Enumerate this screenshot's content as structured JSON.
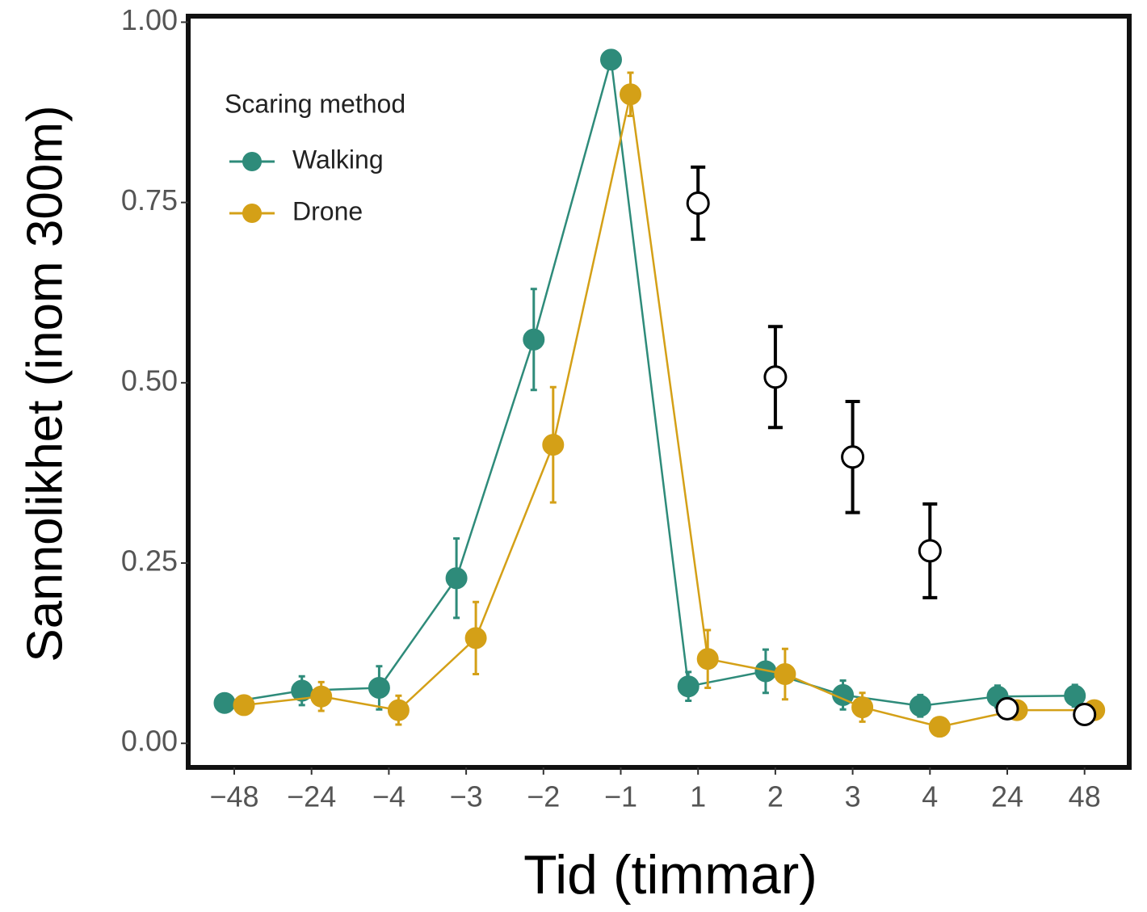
{
  "chart_data": {
    "type": "line",
    "x_label": "Tid (timmar)",
    "y_label": "Sannolikhet (inom 300m)",
    "legend_title": "Scaring method",
    "legend_position": "top-left",
    "categories": [
      "−48",
      "−24",
      "−4",
      "−3",
      "−2",
      "−1",
      "1",
      "2",
      "3",
      "4",
      "24",
      "48"
    ],
    "ylim": [
      -0.03,
      1.005
    ],
    "yticks": [
      {
        "value": 0,
        "label": "0.00"
      },
      {
        "value": 0.25,
        "label": "0.25"
      },
      {
        "value": 0.5,
        "label": "0.50"
      },
      {
        "value": 0.75,
        "label": "0.75"
      },
      {
        "value": 1,
        "label": "1.00"
      }
    ],
    "series": [
      {
        "name": "Walking",
        "color": "#2e8b7a",
        "values": [
          0.056,
          0.073,
          0.077,
          0.229,
          0.56,
          0.948,
          0.079,
          0.1,
          0.067,
          0.052,
          0.065,
          0.066
        ],
        "errors": [
          0.01,
          0.02,
          0.03,
          0.055,
          0.07,
          0.01,
          0.02,
          0.03,
          0.02,
          0.015,
          0.015,
          0.015
        ]
      },
      {
        "name": "Drone",
        "color": "#d4a017",
        "values": [
          0.053,
          0.065,
          0.046,
          0.146,
          0.414,
          0.9,
          0.117,
          0.096,
          0.05,
          0.023,
          0.046,
          0.046
        ],
        "errors": [
          0.01,
          0.02,
          0.02,
          0.05,
          0.08,
          0.03,
          0.04,
          0.035,
          0.02,
          0.01,
          0.01,
          0.01
        ]
      },
      {
        "color": "#000000",
        "fill": "#ffffff",
        "line": false,
        "values": [
          null,
          null,
          null,
          null,
          null,
          null,
          0.749,
          0.508,
          0.397,
          0.267,
          0.048,
          0.04
        ],
        "errors": [
          null,
          null,
          null,
          null,
          null,
          null,
          0.05,
          0.07,
          0.077,
          0.065,
          0.01,
          0.005
        ]
      }
    ]
  }
}
